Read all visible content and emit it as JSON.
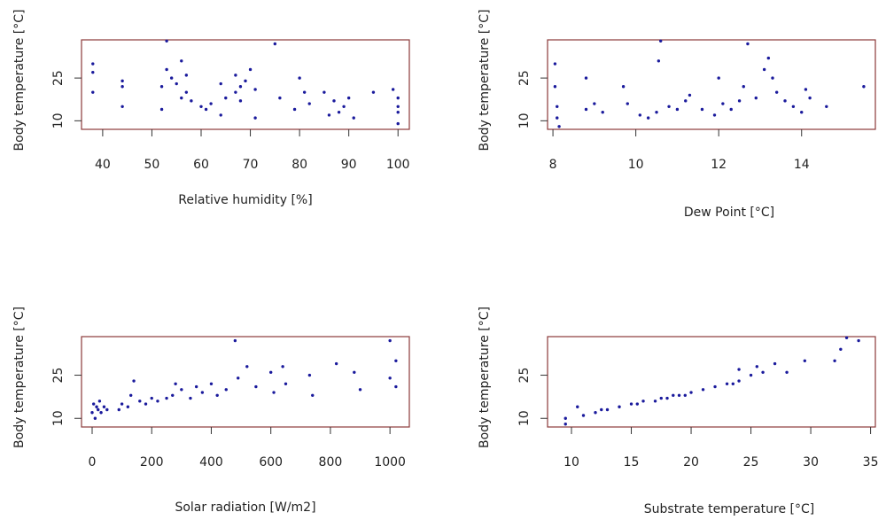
{
  "chart_data": [
    {
      "type": "scatter",
      "xlabel": "Relative humidity [%]",
      "ylabel": "Body temperature [°C]",
      "color": "#1a1a9c",
      "xlim": [
        35.7,
        102.3
      ],
      "ylim": [
        7,
        38.4
      ],
      "xticks": [
        40,
        50,
        60,
        70,
        80,
        90,
        100
      ],
      "yticks": [
        10,
        25
      ],
      "x": [
        38,
        38,
        38,
        44,
        44,
        44,
        52,
        52,
        53,
        53,
        54,
        55,
        56,
        56,
        57,
        57,
        58,
        60,
        61,
        62,
        64,
        64,
        65,
        67,
        67,
        68,
        68,
        69,
        70,
        71,
        71,
        75,
        76,
        79,
        80,
        81,
        82,
        85,
        86,
        87,
        88,
        89,
        90,
        91,
        95,
        99,
        100,
        100,
        100,
        100
      ],
      "y": [
        30,
        27,
        20,
        24,
        22,
        15,
        22,
        14,
        28,
        38,
        25,
        23,
        31,
        18,
        26,
        20,
        17,
        15,
        14,
        16,
        23,
        12,
        18,
        26,
        20,
        22,
        17,
        24,
        28,
        21,
        11,
        37,
        18,
        14,
        25,
        20,
        16,
        20,
        12,
        17,
        13,
        15,
        18,
        11,
        20,
        21,
        18,
        13,
        9,
        15
      ]
    },
    {
      "type": "scatter",
      "xlabel": "Dew Point [°C]",
      "ylabel": "Body temperature [°C]",
      "color": "#1a1a9c",
      "xlim": [
        7.87,
        15.78
      ],
      "ylim": [
        7,
        38.4
      ],
      "xticks": [
        8,
        10,
        12,
        14
      ],
      "yticks": [
        10,
        25
      ],
      "x": [
        8.05,
        8.05,
        8.1,
        8.1,
        8.15,
        8.8,
        8.8,
        9,
        9.2,
        9.7,
        9.8,
        10.1,
        10.3,
        10.5,
        10.55,
        10.6,
        10.8,
        11,
        11.2,
        11.3,
        11.6,
        11.9,
        12,
        12.1,
        12.3,
        12.5,
        12.6,
        12.7,
        12.9,
        13.1,
        13.2,
        13.3,
        13.4,
        13.6,
        13.8,
        14,
        14.1,
        14.2,
        14.6,
        15.5
      ],
      "y": [
        30,
        22,
        15,
        11,
        8,
        25,
        14,
        16,
        13,
        22,
        16,
        12,
        11,
        13,
        31,
        38,
        15,
        14,
        17,
        19,
        14,
        12,
        25,
        16,
        14,
        17,
        22,
        37,
        18,
        28,
        32,
        25,
        20,
        17,
        15,
        13,
        21,
        18,
        15,
        22
      ]
    },
    {
      "type": "scatter",
      "xlabel": "Solar radiation [W/m2]",
      "ylabel": "Body temperature [°C]",
      "color": "#1a1a9c",
      "xlim": [
        -35.7,
        1065
      ],
      "ylim": [
        7,
        38.4
      ],
      "xticks": [
        0,
        200,
        400,
        600,
        800,
        1000
      ],
      "yticks": [
        10,
        25
      ],
      "x": [
        0,
        5,
        10,
        15,
        20,
        25,
        30,
        40,
        50,
        90,
        100,
        120,
        130,
        140,
        160,
        180,
        200,
        220,
        250,
        270,
        280,
        300,
        330,
        350,
        370,
        400,
        420,
        450,
        480,
        490,
        520,
        550,
        600,
        610,
        640,
        650,
        730,
        740,
        820,
        880,
        900,
        1000,
        1000,
        1020,
        1020
      ],
      "y": [
        12,
        15,
        10,
        14,
        13,
        16,
        12,
        14,
        13,
        13,
        15,
        14,
        18,
        23,
        16,
        15,
        17,
        16,
        17,
        18,
        22,
        20,
        17,
        21,
        19,
        22,
        18,
        20,
        37,
        24,
        28,
        21,
        26,
        19,
        28,
        22,
        25,
        18,
        29,
        26,
        20,
        37,
        24,
        30,
        21
      ]
    },
    {
      "type": "scatter",
      "xlabel": "Substrate temperature [°C]",
      "ylabel": "Body temperature [°C]",
      "color": "#1a1a9c",
      "xlim": [
        8.0,
        35.4
      ],
      "ylim": [
        7,
        38.4
      ],
      "xticks": [
        10,
        15,
        20,
        25,
        30,
        35
      ],
      "yticks": [
        10,
        25
      ],
      "x": [
        9.5,
        9.5,
        10.5,
        11,
        12,
        12.5,
        13,
        14,
        15,
        15.5,
        16,
        17,
        17.5,
        18,
        18.5,
        19,
        19.5,
        20,
        21,
        22,
        23,
        23.5,
        24,
        24,
        25,
        25.5,
        26,
        27,
        28,
        29.5,
        32,
        32.5,
        33,
        34
      ],
      "y": [
        10,
        8,
        14,
        11,
        12,
        13,
        13,
        14,
        15,
        15,
        16,
        16,
        17,
        17,
        18,
        18,
        18,
        19,
        20,
        21,
        22,
        22,
        23,
        27,
        25,
        28,
        26,
        29,
        26,
        30,
        30,
        34,
        38,
        37
      ]
    }
  ]
}
